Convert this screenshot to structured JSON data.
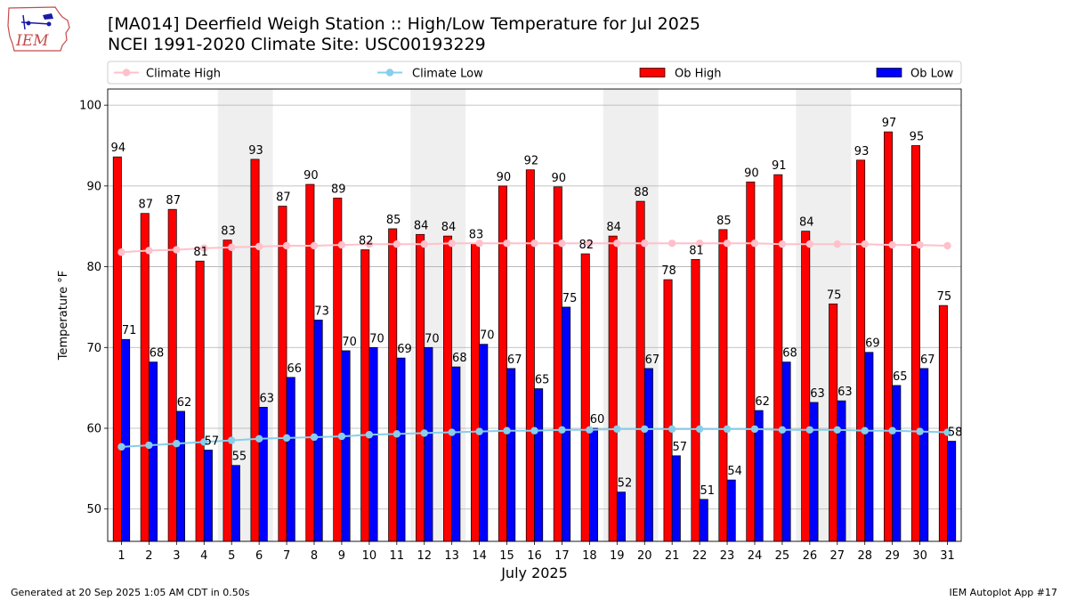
{
  "header": {
    "title_line1": "[MA014] Deerfield Weigh Station  :: High/Low Temperature for Jul 2025",
    "title_line2": "NCEI 1991-2020 Climate Site: USC00193229",
    "logo_text": "IEM"
  },
  "footer": {
    "generated": "Generated at 20 Sep 2025 1:05 AM CDT in 0.50s",
    "app": "IEM Autoplot App #17"
  },
  "colors": {
    "ob_high": "#ff0000",
    "ob_low": "#0000ff",
    "climate_high": "#ffc0cb",
    "climate_low": "#87ceeb",
    "weekend": "#efefef"
  },
  "chart_data": {
    "type": "bar",
    "xlabel": "July 2025",
    "ylabel": "Temperature °F",
    "ylim": [
      46,
      102
    ],
    "yticks": [
      50,
      60,
      70,
      80,
      90,
      100
    ],
    "grid": true,
    "legend_position": "top",
    "categories": [
      "1",
      "2",
      "3",
      "4",
      "5",
      "6",
      "7",
      "8",
      "9",
      "10",
      "11",
      "12",
      "13",
      "14",
      "15",
      "16",
      "17",
      "18",
      "19",
      "20",
      "21",
      "22",
      "23",
      "24",
      "25",
      "26",
      "27",
      "28",
      "29",
      "30",
      "31"
    ],
    "weekend_spans": [
      [
        5,
        6
      ],
      [
        12,
        13
      ],
      [
        19,
        20
      ],
      [
        26,
        27
      ]
    ],
    "legend": [
      "Climate High",
      "Climate Low",
      "Ob High",
      "Ob Low"
    ],
    "series": [
      {
        "name": "Ob High",
        "type": "bar",
        "values": [
          93.6,
          86.6,
          87.1,
          80.7,
          83.3,
          93.3,
          87.5,
          90.2,
          88.5,
          82.1,
          84.7,
          84.0,
          83.8,
          82.9,
          90.0,
          92.0,
          89.9,
          81.6,
          83.8,
          88.1,
          78.4,
          80.9,
          84.6,
          90.5,
          91.4,
          84.4,
          75.4,
          93.2,
          96.7,
          95.0,
          75.2
        ],
        "labels": [
          94,
          87,
          87,
          81,
          83,
          93,
          87,
          90,
          89,
          82,
          85,
          84,
          84,
          83,
          90,
          92,
          90,
          82,
          84,
          88,
          78,
          81,
          85,
          90,
          91,
          84,
          75,
          93,
          97,
          95,
          75
        ]
      },
      {
        "name": "Ob Low",
        "type": "bar",
        "values": [
          71.0,
          68.2,
          62.1,
          57.3,
          55.4,
          62.6,
          66.3,
          73.4,
          69.6,
          70.0,
          68.7,
          70.0,
          67.6,
          70.4,
          67.4,
          64.9,
          75.0,
          60.0,
          52.1,
          67.4,
          56.6,
          51.2,
          53.6,
          62.2,
          68.2,
          63.2,
          63.4,
          69.4,
          65.3,
          67.4,
          58.4
        ],
        "labels": [
          71,
          68,
          62,
          57,
          55,
          63,
          66,
          73,
          70,
          70,
          69,
          70,
          68,
          70,
          67,
          65,
          75,
          60,
          52,
          67,
          57,
          51,
          54,
          62,
          68,
          63,
          63,
          69,
          65,
          67,
          58
        ]
      },
      {
        "name": "Climate High",
        "type": "line",
        "values": [
          81.8,
          82.0,
          82.1,
          82.3,
          82.4,
          82.5,
          82.6,
          82.6,
          82.7,
          82.8,
          82.8,
          82.8,
          82.9,
          82.9,
          82.9,
          82.9,
          82.9,
          82.9,
          82.9,
          82.9,
          82.9,
          82.9,
          82.9,
          82.9,
          82.8,
          82.8,
          82.8,
          82.8,
          82.7,
          82.7,
          82.6
        ]
      },
      {
        "name": "Climate Low",
        "type": "line",
        "values": [
          57.7,
          57.9,
          58.1,
          58.3,
          58.5,
          58.7,
          58.8,
          58.9,
          59.0,
          59.2,
          59.3,
          59.4,
          59.5,
          59.6,
          59.7,
          59.7,
          59.8,
          59.8,
          59.9,
          59.9,
          59.9,
          59.9,
          59.9,
          59.9,
          59.8,
          59.8,
          59.8,
          59.7,
          59.7,
          59.6,
          59.5
        ]
      }
    ]
  }
}
